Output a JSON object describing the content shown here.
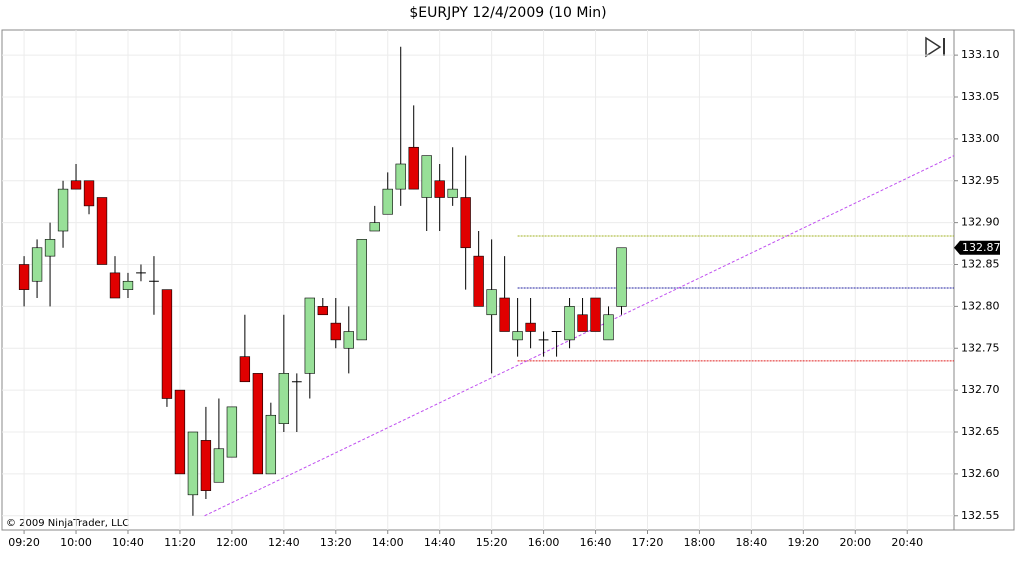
{
  "chart_data": {
    "type": "candlestick",
    "title": "$EURJPY  12/4/2009 (10 Min)",
    "copyright": "© 2009 NinjaTrader, LLC",
    "open": [
      132.85,
      132.83,
      132.86,
      132.89,
      132.95,
      132.95,
      132.93,
      132.84,
      132.82,
      132.84,
      132.83,
      132.82,
      132.7,
      132.575,
      132.64,
      132.59,
      132.62,
      132.74,
      132.72,
      132.6,
      132.66,
      132.71,
      132.72,
      132.8,
      132.78,
      132.75,
      132.76,
      132.89,
      132.91,
      132.94,
      132.99,
      132.93,
      132.95,
      132.93,
      132.93,
      132.86,
      132.79,
      132.81,
      132.76,
      132.78,
      132.76,
      132.77,
      132.76,
      132.79,
      132.81,
      132.76,
      132.8
    ],
    "high": [
      132.86,
      132.88,
      132.9,
      132.95,
      132.97,
      132.95,
      132.93,
      132.86,
      132.84,
      132.85,
      132.86,
      132.82,
      132.7,
      132.65,
      132.68,
      132.69,
      132.68,
      132.79,
      132.72,
      132.685,
      132.79,
      132.72,
      132.81,
      132.81,
      132.81,
      132.8,
      132.88,
      132.92,
      132.96,
      133.11,
      133.04,
      132.98,
      132.97,
      132.99,
      132.98,
      132.89,
      132.88,
      132.86,
      132.81,
      132.81,
      132.77,
      132.77,
      132.81,
      132.81,
      132.81,
      132.8,
      132.87
    ],
    "low": [
      132.8,
      132.81,
      132.8,
      132.87,
      132.94,
      132.91,
      132.85,
      132.81,
      132.81,
      132.83,
      132.79,
      132.68,
      132.6,
      132.55,
      132.57,
      132.59,
      132.62,
      132.71,
      132.6,
      132.6,
      132.65,
      132.65,
      132.69,
      132.79,
      132.75,
      132.72,
      132.76,
      132.89,
      132.91,
      132.92,
      132.94,
      132.89,
      132.89,
      132.92,
      132.82,
      132.8,
      132.72,
      132.77,
      132.74,
      132.75,
      132.74,
      132.74,
      132.75,
      132.77,
      132.77,
      132.76,
      132.79
    ],
    "close": [
      132.82,
      132.87,
      132.88,
      132.94,
      132.94,
      132.92,
      132.85,
      132.81,
      132.83,
      132.84,
      132.83,
      132.69,
      132.6,
      132.65,
      132.58,
      132.63,
      132.68,
      132.71,
      132.6,
      132.67,
      132.72,
      132.71,
      132.81,
      132.79,
      132.76,
      132.77,
      132.88,
      132.9,
      132.94,
      132.97,
      132.94,
      132.98,
      132.93,
      132.94,
      132.87,
      132.8,
      132.82,
      132.77,
      132.77,
      132.77,
      132.76,
      132.77,
      132.8,
      132.77,
      132.77,
      132.79,
      132.87
    ],
    "up_color": "#98e098",
    "down_color": "#e00000",
    "xlim": [
      -1.7,
      71.6
    ],
    "xticks": [
      {
        "value": 0,
        "label": "09:20"
      },
      {
        "value": 4,
        "label": "10:00"
      },
      {
        "value": 8,
        "label": "10:40"
      },
      {
        "value": 12,
        "label": "11:20"
      },
      {
        "value": 16,
        "label": "12:00"
      },
      {
        "value": 20,
        "label": "12:40"
      },
      {
        "value": 24,
        "label": "13:20"
      },
      {
        "value": 28,
        "label": "14:00"
      },
      {
        "value": 32,
        "label": "14:40"
      },
      {
        "value": 36,
        "label": "15:20"
      },
      {
        "value": 40,
        "label": "16:00"
      },
      {
        "value": 44,
        "label": "16:40"
      },
      {
        "value": 48,
        "label": "17:20"
      },
      {
        "value": 52,
        "label": "18:00"
      },
      {
        "value": 56,
        "label": "18:40"
      },
      {
        "value": 60,
        "label": "19:20"
      },
      {
        "value": 64,
        "label": "20:00"
      },
      {
        "value": 68,
        "label": "20:40"
      }
    ],
    "ylim": [
      132.533,
      133.13
    ],
    "yticks": [
      132.55,
      {
        "value": 132.6,
        "label": "132.60"
      },
      132.65,
      {
        "value": 132.7,
        "label": "132.70"
      },
      132.75,
      {
        "value": 132.8,
        "label": "132.80"
      },
      132.85,
      {
        "value": 132.9,
        "label": "132.90"
      },
      132.95,
      {
        "value": 133,
        "label": "133.00"
      },
      133.05,
      {
        "value": 133.1,
        "label": "133.10"
      }
    ],
    "grid": true,
    "last_price": 132.87,
    "levels": [
      {
        "value": 132.884,
        "color": "#a0b020",
        "start": 38
      },
      {
        "value": 132.822,
        "color": "#2020a0",
        "start": 38
      },
      {
        "value": 132.735,
        "color": "#e02020",
        "start": 38
      }
    ],
    "trendline": {
      "x": [
        13.9,
        71.6
      ],
      "values": [
        132.55,
        132.98
      ],
      "color": "#c050f0"
    }
  }
}
